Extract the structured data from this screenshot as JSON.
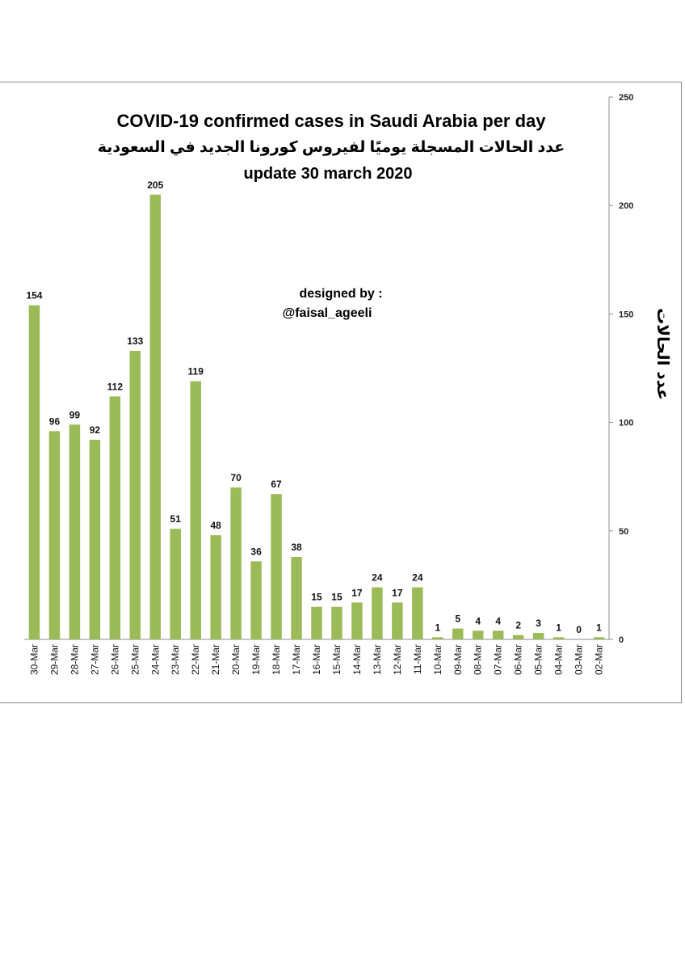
{
  "chart_data": {
    "type": "bar",
    "title": "COVID-19 confirmed cases in Saudi Arabia per day",
    "subtitle_ar": "عدد الحالات المسجلة يوميًا لفيروس كورونا الجديد في السعودية",
    "subtitle_update": "update 30 march 2020",
    "credit_line1": "designed by :",
    "credit_line2": "@faisal_ageeli",
    "ylabel": "عدد الحالات",
    "xlabel": "",
    "ylim": [
      0,
      250
    ],
    "yticks": [
      0,
      50,
      100,
      150,
      200,
      250
    ],
    "ytick_labels": [
      "0",
      "50",
      "100",
      "150",
      "200",
      "250"
    ],
    "y_axis_side": "right",
    "bar_color": "#9bbb59",
    "categories": [
      "30-Mar",
      "29-Mar",
      "28-Mar",
      "27-Mar",
      "26-Mar",
      "25-Mar",
      "24-Mar",
      "23-Mar",
      "22-Mar",
      "21-Mar",
      "20-Mar",
      "19-Mar",
      "18-Mar",
      "17-Mar",
      "16-Mar",
      "15-Mar",
      "14-Mar",
      "13-Mar",
      "12-Mar",
      "11-Mar",
      "10-Mar",
      "09-Mar",
      "08-Mar",
      "07-Mar",
      "06-Mar",
      "05-Mar",
      "04-Mar",
      "03-Mar",
      "02-Mar"
    ],
    "values": [
      154,
      96,
      99,
      92,
      112,
      133,
      205,
      51,
      119,
      48,
      70,
      36,
      67,
      38,
      15,
      15,
      17,
      24,
      17,
      24,
      1,
      5,
      4,
      4,
      2,
      3,
      1,
      0,
      1
    ],
    "value_labels": [
      "154",
      "96",
      "99",
      "92",
      "112",
      "133",
      "205",
      "51",
      "119",
      "48",
      "70",
      "36",
      "67",
      "38",
      "15",
      "15",
      "17",
      "24",
      "17",
      "24",
      "1",
      "5",
      "4",
      "4",
      "2",
      "3",
      "1",
      "0",
      "1"
    ]
  }
}
